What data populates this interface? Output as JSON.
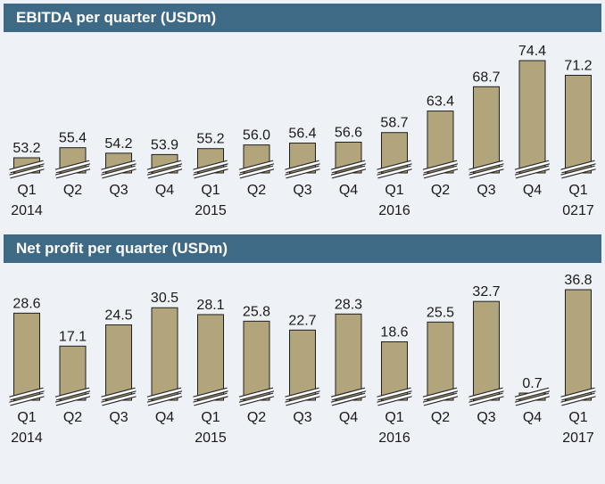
{
  "chart_data": [
    {
      "type": "bar",
      "title": "EBITDA per quarter (USDm)",
      "categories": [
        "Q1",
        "Q2",
        "Q3",
        "Q4",
        "Q1",
        "Q2",
        "Q3",
        "Q4",
        "Q1",
        "Q2",
        "Q3",
        "Q4",
        "Q1"
      ],
      "year_labels": [
        "2014",
        "",
        "",
        "",
        "2015",
        "",
        "",
        "",
        "2016",
        "",
        "",
        "",
        "0217"
      ],
      "values": [
        53.2,
        55.4,
        54.2,
        53.9,
        55.2,
        56.0,
        56.4,
        56.6,
        58.7,
        63.4,
        68.7,
        74.4,
        71.2
      ],
      "value_labels": [
        "53.2",
        "55.4",
        "54.2",
        "53.9",
        "55.2",
        "56.0",
        "56.4",
        "56.6",
        "58.7",
        "63.4",
        "68.7",
        "74.4",
        "71.2"
      ],
      "axis_break": true,
      "bar_color": "#b3a57b",
      "grid": false,
      "legend": "none"
    },
    {
      "type": "bar",
      "title": "Net profit per quarter (USDm)",
      "categories": [
        "Q1",
        "Q2",
        "Q3",
        "Q4",
        "Q1",
        "Q2",
        "Q3",
        "Q4",
        "Q1",
        "Q2",
        "Q3",
        "Q4",
        "Q1"
      ],
      "year_labels": [
        "2014",
        "",
        "",
        "",
        "2015",
        "",
        "",
        "",
        "2016",
        "",
        "",
        "",
        "2017"
      ],
      "values": [
        28.6,
        17.1,
        24.5,
        30.5,
        28.1,
        25.8,
        22.7,
        28.3,
        18.6,
        25.5,
        32.7,
        0.7,
        36.8
      ],
      "value_labels": [
        "28.6",
        "17.1",
        "24.5",
        "30.5",
        "28.1",
        "25.8",
        "22.7",
        "28.3",
        "18.6",
        "25.5",
        "32.7",
        "0.7",
        "36.8"
      ],
      "axis_break": true,
      "bar_color": "#b3a57b",
      "grid": false,
      "legend": "none"
    }
  ],
  "colors": {
    "header_bg": "#3f6a86",
    "header_text": "#ffffff",
    "background": "#eef2f7",
    "bar": "#b3a57b"
  }
}
